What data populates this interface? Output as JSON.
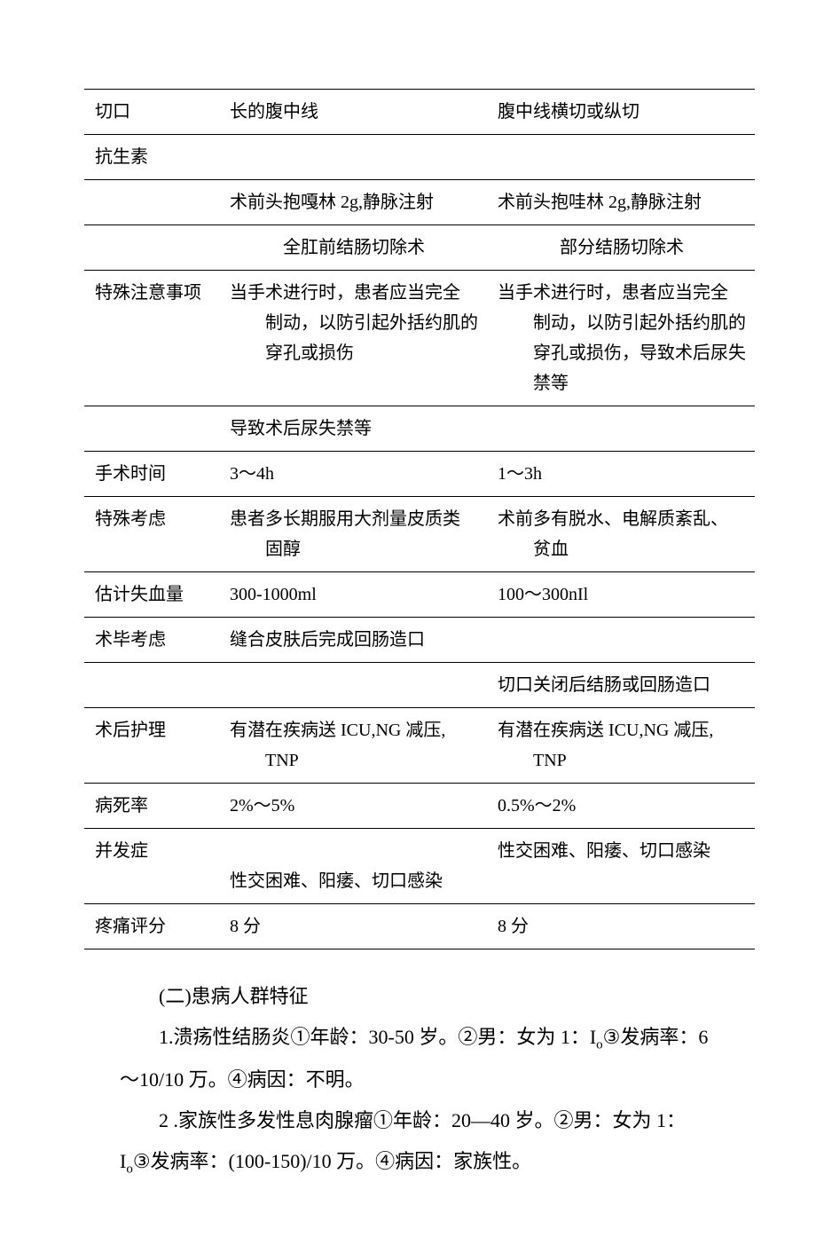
{
  "table": {
    "rows": [
      {
        "c1": "切口",
        "c2": "长的腹中线",
        "c3": "腹中线横切或纵切"
      },
      {
        "c1": "抗生素",
        "c2": "",
        "c3": ""
      },
      {
        "c1": "",
        "c2": "术前头抱嘎林 2g,静脉注射",
        "c3": "术前头抱哇林 2g,静脉注射"
      },
      {
        "c1": "",
        "c2_center": "全肛前结肠切除术",
        "c3_center": "部分结肠切除术"
      },
      {
        "c1": "特殊注意事项",
        "c2": "当手术进行时，患者应当完全制动，以防引起外括约肌的穿孔或损伤",
        "c3": "当手术进行时，患者应当完全制动，以防引起外括约肌的穿孔或损伤，导致术后尿失禁等"
      },
      {
        "c1": "",
        "c2": "导致术后尿失禁等",
        "c3": ""
      },
      {
        "c1": "手术时间",
        "c2": "3～4h",
        "c3": "1～3h"
      },
      {
        "c1": "特殊考虑",
        "c2": "患者多长期服用大剂量皮质类固醇",
        "c3": "术前多有脱水、电解质紊乱、贫血"
      },
      {
        "c1": "估计失血量",
        "c2": "300-1000ml",
        "c3": "100～300nIl"
      },
      {
        "c1": "术毕考虑",
        "c2": "缝合皮肤后完成回肠造口",
        "c3": ""
      },
      {
        "c1": "",
        "c2": "",
        "c3": "切口关闭后结肠或回肠造口"
      },
      {
        "c1": "术后护理",
        "c2": "有潜在疾病送 ICU,NG 减压,TNP",
        "c3": "有潜在疾病送 ICU,NG 减压,TNP"
      },
      {
        "c1": "病死率",
        "c2": "2%～5%",
        "c3": "0.5%～2%"
      },
      {
        "c1": "并发症",
        "c2": "性交困难、阳痿、切口感染",
        "c3": "性交困难、阳痿、切口感染"
      },
      {
        "c1": "疼痛评分",
        "c2": "8 分",
        "c3": "8 分"
      }
    ]
  },
  "body": {
    "p1": "(二)患病人群特征",
    "p2_a": "1.溃疡性结肠炎①年龄：30-50 岁。②男：女为 1：I",
    "p2_b": "③发病率：6～10/10 万。④病因：不明。",
    "p3_a": "2 .家族性多发性息肉腺瘤①年龄：20—40 岁。②男：女为 1：I",
    "p3_b": "③发病率：(100-150)/10 万。④病因：家族性。",
    "sub": "o"
  }
}
